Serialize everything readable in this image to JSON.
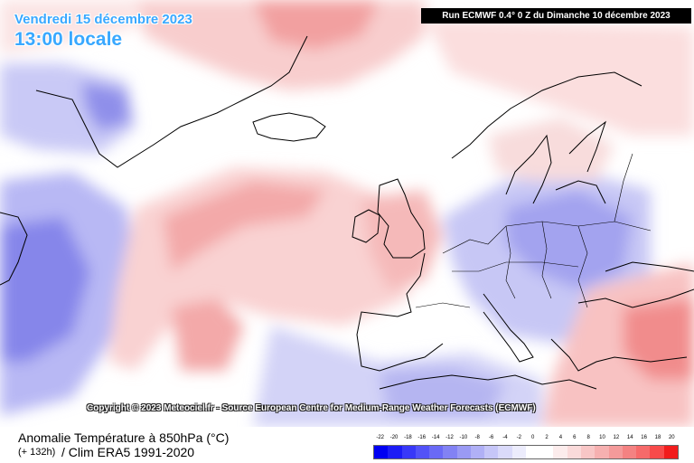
{
  "header": {
    "date": "Vendredi 15 décembre 2023",
    "time": "13:00 locale",
    "run": "Run ECMWF 0.4° 0 Z du Dimanche 10 décembre 2023"
  },
  "copyright": "Copyright © 2023 Meteociel.fr - Source European Centre for Medium-Range Weather Forecasts (ECMWF)",
  "footer": {
    "title": "Anomalie Température à 850hPa (°C)",
    "lead": "(+ 132h)",
    "clim": "/ Clim ERA5 1991-2020"
  },
  "legend": {
    "labels": [
      "-22",
      "-20",
      "-18",
      "-16",
      "-14",
      "-12",
      "-10",
      "-8",
      "-6",
      "-4",
      "-2",
      "0",
      "2",
      "4",
      "6",
      "8",
      "10",
      "12",
      "14",
      "16",
      "18",
      "20"
    ],
    "colors": [
      "#0000f2",
      "#1c1cf6",
      "#3838f8",
      "#5252f8",
      "#6a6af6",
      "#8282f4",
      "#9a9af4",
      "#b0b0f6",
      "#c6c6f8",
      "#dadafa",
      "#ececfc",
      "#ffffff",
      "#ffffff",
      "#fcecec",
      "#fadada",
      "#f8c6c6",
      "#f6b0b0",
      "#f49a9a",
      "#f48282",
      "#f66a6a",
      "#f84a4a",
      "#f21c1c"
    ]
  }
}
